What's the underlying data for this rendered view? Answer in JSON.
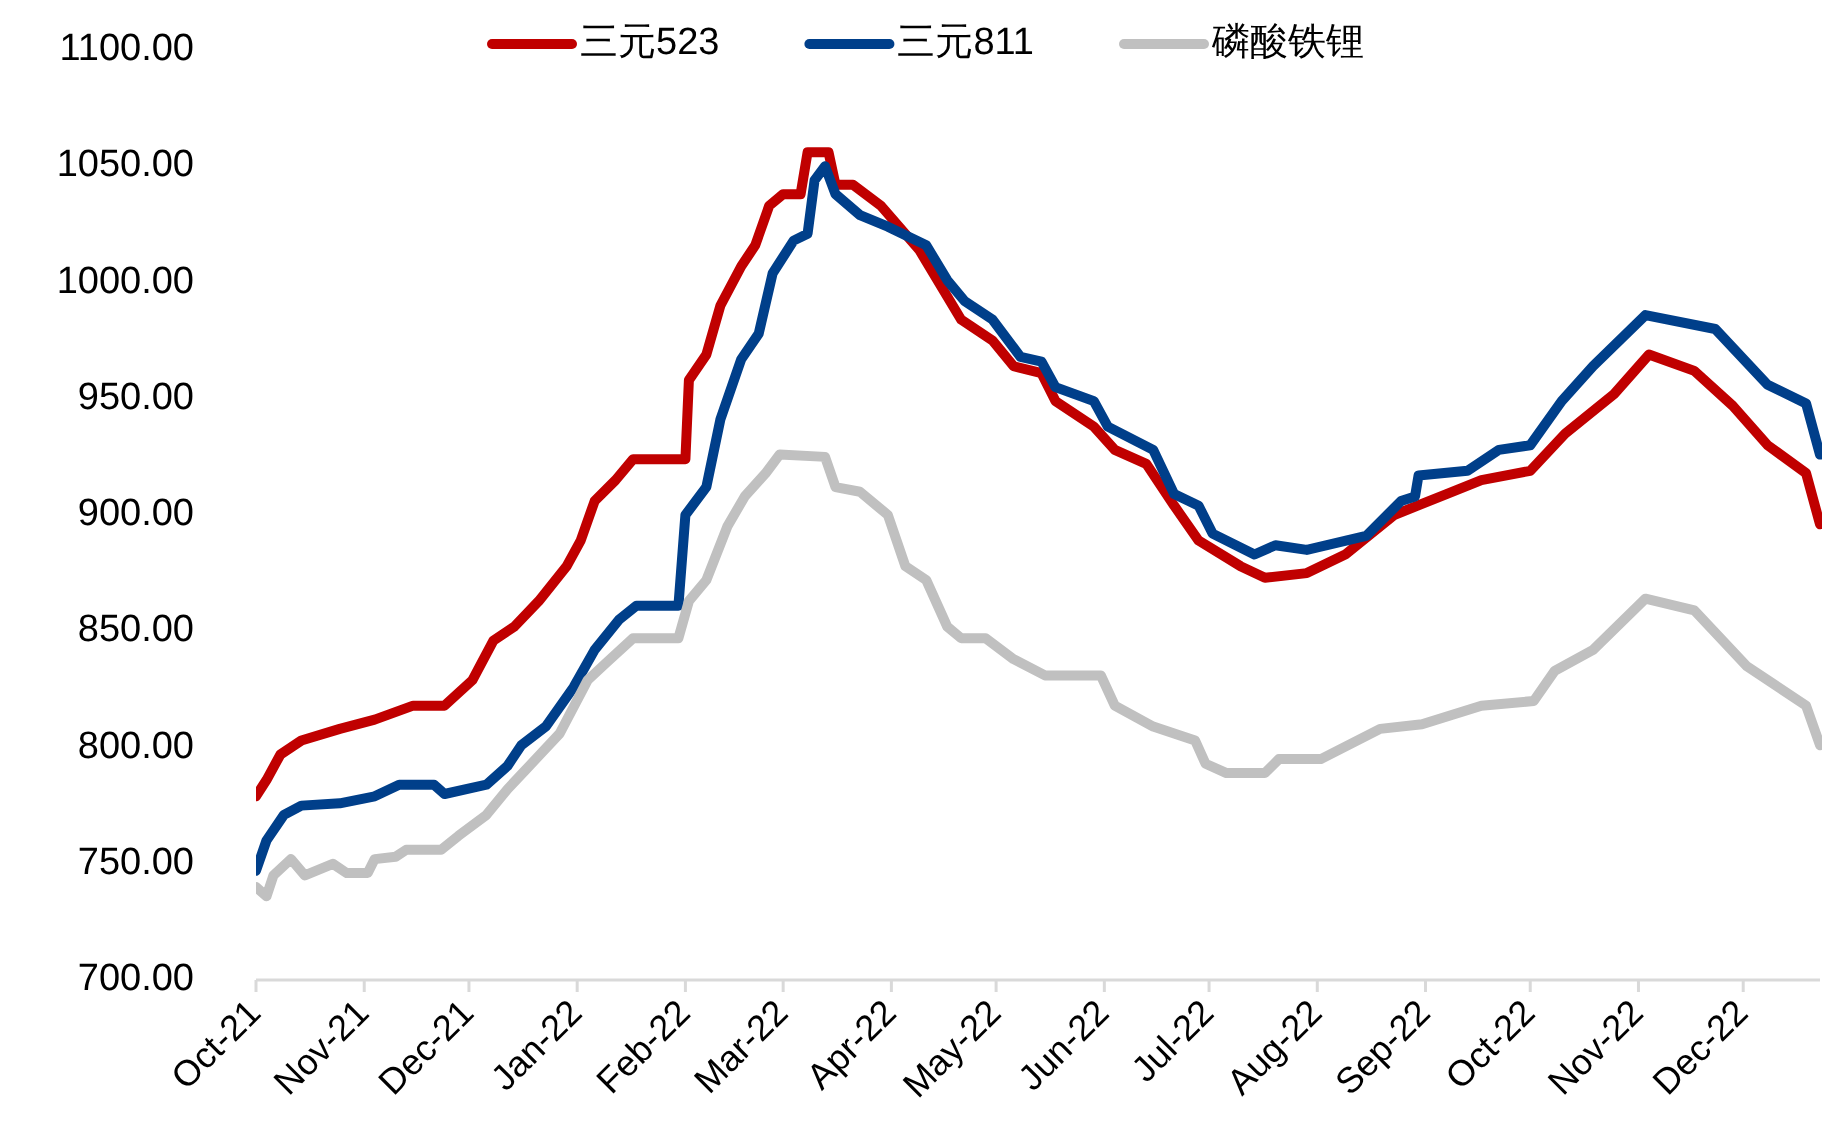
{
  "chart_data": {
    "type": "line",
    "legend": "top",
    "grid": false,
    "line_style": "solid",
    "xlim": [
      "2021-10-01",
      "2022-12-23"
    ],
    "xticks": [
      {
        "value": "2021-10-01",
        "label": "Oct-21"
      },
      {
        "value": "2021-11-01",
        "label": "Nov-21"
      },
      {
        "value": "2021-12-01",
        "label": "Dec-21"
      },
      {
        "value": "2022-01-01",
        "label": "Jan-22"
      },
      {
        "value": "2022-02-01",
        "label": "Feb-22"
      },
      {
        "value": "2022-03-01",
        "label": "Mar-22"
      },
      {
        "value": "2022-04-01",
        "label": "Apr-22"
      },
      {
        "value": "2022-05-01",
        "label": "May-22"
      },
      {
        "value": "2022-06-01",
        "label": "Jun-22"
      },
      {
        "value": "2022-07-01",
        "label": "Jul-22"
      },
      {
        "value": "2022-08-01",
        "label": "Aug-22"
      },
      {
        "value": "2022-09-01",
        "label": "Sep-22"
      },
      {
        "value": "2022-10-01",
        "label": "Oct-22"
      },
      {
        "value": "2022-11-01",
        "label": "Nov-22"
      },
      {
        "value": "2022-12-01",
        "label": "Dec-22"
      }
    ],
    "ylim": [
      700,
      1100
    ],
    "yticks": [
      {
        "value": 700,
        "label": "700.00"
      },
      {
        "value": 750,
        "label": "750.00"
      },
      {
        "value": 800,
        "label": "800.00"
      },
      {
        "value": 850,
        "label": "850.00"
      },
      {
        "value": 900,
        "label": "900.00"
      },
      {
        "value": 950,
        "label": "950.00"
      },
      {
        "value": 1000,
        "label": "1000.00"
      },
      {
        "value": 1050,
        "label": "1050.00"
      },
      {
        "value": 1100,
        "label": "1100.00"
      }
    ],
    "series": [
      {
        "name": "三元523",
        "color": "#c00000",
        "x": [
          "2021-10-01",
          "2021-10-04",
          "2021-10-08",
          "2021-10-14",
          "2021-10-25",
          "2021-11-04",
          "2021-11-15",
          "2021-11-24",
          "2021-12-02",
          "2021-12-08",
          "2021-12-14",
          "2021-12-21",
          "2021-12-29",
          "2022-01-02",
          "2022-01-06",
          "2022-01-12",
          "2022-01-17",
          "2022-02-01",
          "2022-02-02",
          "2022-02-07",
          "2022-02-11",
          "2022-02-17",
          "2022-02-21",
          "2022-02-25",
          "2022-03-01",
          "2022-03-06",
          "2022-03-08",
          "2022-03-14",
          "2022-03-16",
          "2022-03-21",
          "2022-03-29",
          "2022-04-09",
          "2022-04-21",
          "2022-04-30",
          "2022-05-06",
          "2022-05-14",
          "2022-05-18",
          "2022-05-29",
          "2022-06-04",
          "2022-06-13",
          "2022-06-21",
          "2022-06-28",
          "2022-07-10",
          "2022-07-17",
          "2022-07-29",
          "2022-08-09",
          "2022-08-23",
          "2022-09-07",
          "2022-09-17",
          "2022-10-01",
          "2022-10-11",
          "2022-10-25",
          "2022-11-04",
          "2022-11-17",
          "2022-11-28",
          "2022-12-08",
          "2022-12-19",
          "2022-12-23"
        ],
        "values": [
          779,
          786,
          797,
          803,
          808,
          812,
          818,
          818,
          829,
          846,
          852,
          863,
          878,
          889,
          906,
          915,
          924,
          924,
          958,
          969,
          990,
          1007,
          1016,
          1033,
          1038,
          1038,
          1056,
          1056,
          1042,
          1042,
          1033,
          1014,
          984,
          975,
          964,
          961,
          949,
          938,
          928,
          922,
          904,
          889,
          878,
          873,
          875,
          883,
          900,
          909,
          915,
          919,
          935,
          952,
          969,
          962,
          947,
          930,
          918,
          896
        ]
      },
      {
        "name": "三元811",
        "color": "#003f8a",
        "x": [
          "2021-10-01",
          "2021-10-04",
          "2021-10-09",
          "2021-10-14",
          "2021-10-25",
          "2021-11-04",
          "2021-11-11",
          "2021-11-21",
          "2021-11-24",
          "2021-12-06",
          "2021-12-12",
          "2021-12-16",
          "2021-12-23",
          "2021-12-31",
          "2022-01-06",
          "2022-01-13",
          "2022-01-18",
          "2022-01-30",
          "2022-02-01",
          "2022-02-07",
          "2022-02-11",
          "2022-02-17",
          "2022-02-22",
          "2022-02-26",
          "2022-03-04",
          "2022-03-08",
          "2022-03-10",
          "2022-03-13",
          "2022-03-16",
          "2022-03-23",
          "2022-03-31",
          "2022-04-11",
          "2022-04-17",
          "2022-04-22",
          "2022-04-30",
          "2022-05-08",
          "2022-05-14",
          "2022-05-18",
          "2022-05-29",
          "2022-06-02",
          "2022-06-15",
          "2022-06-21",
          "2022-06-28",
          "2022-07-02",
          "2022-07-14",
          "2022-07-20",
          "2022-07-29",
          "2022-08-15",
          "2022-08-25",
          "2022-08-29",
          "2022-08-30",
          "2022-09-13",
          "2022-09-22",
          "2022-10-01",
          "2022-10-10",
          "2022-10-19",
          "2022-11-03",
          "2022-11-23",
          "2022-12-08",
          "2022-12-19",
          "2022-12-23"
        ],
        "values": [
          747,
          760,
          771,
          775,
          776,
          779,
          784,
          784,
          780,
          784,
          792,
          801,
          809,
          826,
          842,
          855,
          861,
          861,
          900,
          912,
          941,
          967,
          978,
          1004,
          1018,
          1021,
          1044,
          1050,
          1038,
          1029,
          1024,
          1016,
          1001,
          992,
          984,
          968,
          966,
          955,
          949,
          938,
          928,
          909,
          904,
          892,
          883,
          887,
          885,
          891,
          906,
          908,
          917,
          919,
          928,
          930,
          949,
          964,
          986,
          980,
          956,
          948,
          926
        ]
      },
      {
        "name": "磷酸铁锂",
        "color": "#c0c0c0",
        "x": [
          "2021-10-01",
          "2021-10-04",
          "2021-10-06",
          "2021-10-11",
          "2021-10-15",
          "2021-10-23",
          "2021-10-27",
          "2021-11-02",
          "2021-11-04",
          "2021-11-10",
          "2021-11-13",
          "2021-11-23",
          "2021-11-28",
          "2021-12-06",
          "2021-12-12",
          "2021-12-17",
          "2021-12-27",
          "2022-01-04",
          "2022-01-09",
          "2022-01-17",
          "2022-01-30",
          "2022-02-02",
          "2022-02-07",
          "2022-02-13",
          "2022-02-18",
          "2022-02-24",
          "2022-02-28",
          "2022-03-13",
          "2022-03-16",
          "2022-03-23",
          "2022-03-31",
          "2022-04-05",
          "2022-04-11",
          "2022-04-17",
          "2022-04-21",
          "2022-04-28",
          "2022-05-06",
          "2022-05-15",
          "2022-05-31",
          "2022-06-04",
          "2022-06-15",
          "2022-06-27",
          "2022-06-30",
          "2022-07-06",
          "2022-07-17",
          "2022-07-21",
          "2022-08-02",
          "2022-08-19",
          "2022-08-31",
          "2022-09-17",
          "2022-10-02",
          "2022-10-08",
          "2022-10-19",
          "2022-11-03",
          "2022-11-17",
          "2022-12-02",
          "2022-12-19",
          "2022-12-23"
        ],
        "values": [
          740,
          736,
          745,
          752,
          745,
          750,
          746,
          746,
          752,
          753,
          756,
          756,
          762,
          771,
          782,
          790,
          806,
          829,
          836,
          847,
          847,
          863,
          872,
          895,
          908,
          918,
          926,
          925,
          912,
          910,
          900,
          878,
          872,
          852,
          847,
          847,
          838,
          831,
          831,
          818,
          809,
          803,
          793,
          789,
          789,
          795,
          795,
          808,
          810,
          818,
          820,
          833,
          842,
          864,
          859,
          835,
          818,
          801
        ]
      }
    ]
  }
}
